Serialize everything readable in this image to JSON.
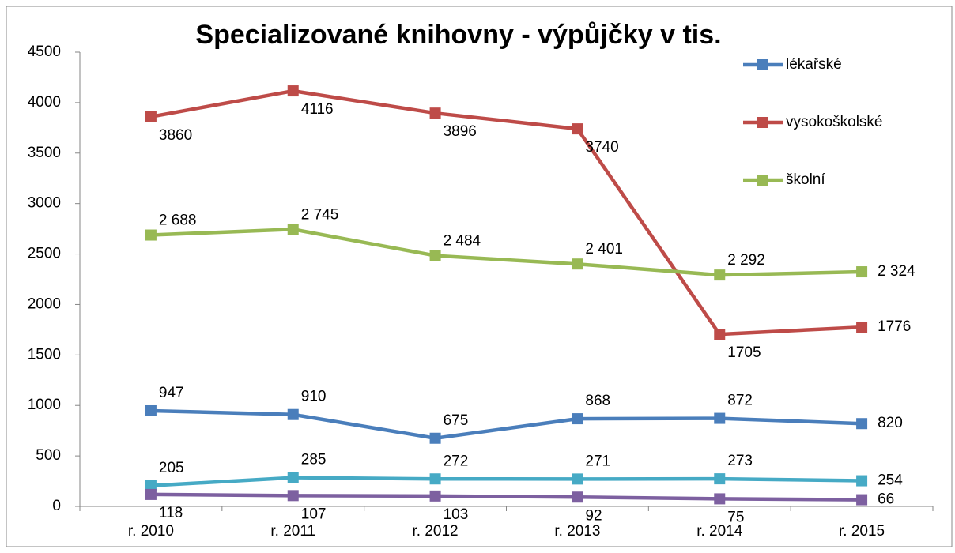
{
  "chart_data": {
    "type": "line",
    "title": "Specializované knihovny - výpůjčky v tis.",
    "categories": [
      "r. 2010",
      "r. 2011",
      "r. 2012",
      "r. 2013",
      "r. 2014",
      "r. 2015"
    ],
    "series": [
      {
        "name": "lékařské",
        "color": "#4a7ebb",
        "values": [
          947,
          910,
          675,
          868,
          872,
          820
        ]
      },
      {
        "name": "vysokoškolské",
        "color": "#be4b48",
        "values": [
          3860,
          4116,
          3896,
          3740,
          1705,
          1776
        ]
      },
      {
        "name": "školní",
        "color": "#98b954",
        "values": [
          2688,
          2745,
          2484,
          2401,
          2292,
          2324
        ],
        "value_labels": [
          "2 688",
          "2 745",
          "2 484",
          "2 401",
          "2 292",
          "2 324"
        ]
      },
      {
        "color": "#46aac5",
        "values": [
          205,
          285,
          272,
          271,
          273,
          254
        ]
      },
      {
        "color": "#7d60a0",
        "values": [
          118,
          107,
          103,
          92,
          75,
          66
        ]
      }
    ],
    "ylim": [
      0,
      4500
    ],
    "yticks": [
      0,
      500,
      1000,
      1500,
      2000,
      2500,
      3000,
      3500,
      4000,
      4500
    ],
    "legend": "right"
  }
}
